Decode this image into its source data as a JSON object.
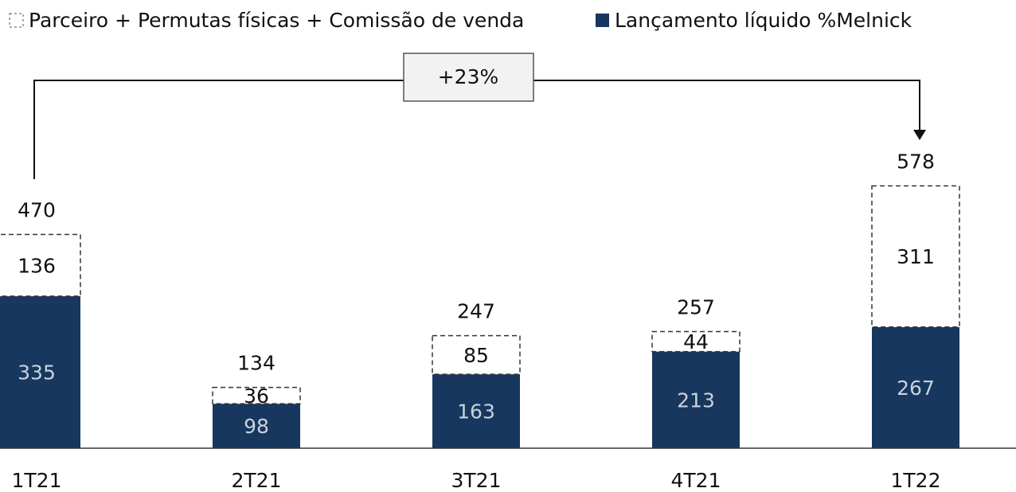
{
  "chart_data": {
    "type": "bar",
    "stacked": true,
    "categories": [
      "1T21",
      "2T21",
      "3T21",
      "4T21",
      "1T22"
    ],
    "series": [
      {
        "name": "Lançamento líquido %Melnick",
        "color": "#17375e",
        "values": [
          335,
          98,
          163,
          213,
          267
        ]
      },
      {
        "name": "Parceiro + Permutas físicas + Comissão de venda",
        "color": "#ffffff",
        "values": [
          136,
          36,
          85,
          44,
          311
        ]
      }
    ],
    "totals": [
      470,
      134,
      247,
      257,
      578
    ],
    "annotation": "+23%"
  }
}
